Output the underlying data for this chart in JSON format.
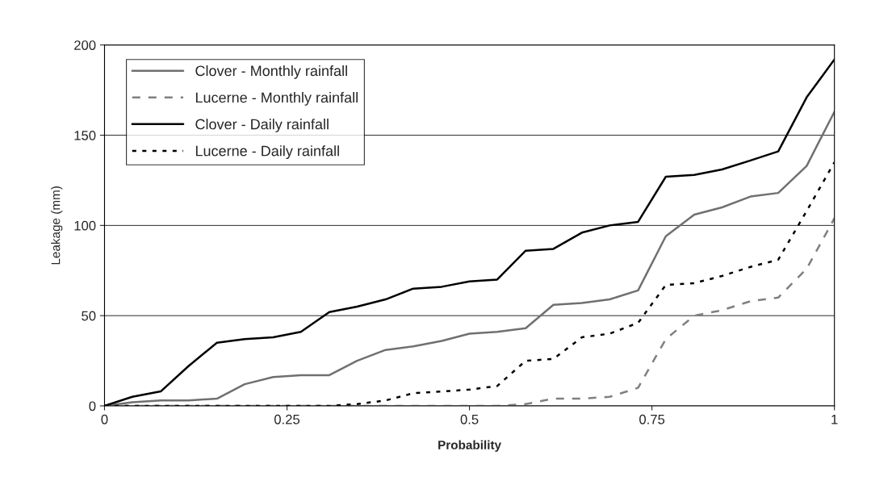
{
  "chart_data": {
    "type": "line",
    "xlabel": "Probability",
    "ylabel": "Leakage (mm)",
    "x": [
      0,
      0.038,
      0.077,
      0.115,
      0.154,
      0.192,
      0.231,
      0.269,
      0.308,
      0.346,
      0.385,
      0.423,
      0.462,
      0.5,
      0.538,
      0.577,
      0.615,
      0.654,
      0.692,
      0.731,
      0.769,
      0.808,
      0.846,
      0.885,
      0.923,
      0.962,
      1
    ],
    "series": [
      {
        "name": "Clover - Monthly rainfall",
        "color": "#707070",
        "line_style": "solid",
        "values": [
          0,
          2,
          3,
          3,
          4,
          12,
          16,
          17,
          17,
          25,
          31,
          33,
          36,
          40,
          41,
          43,
          56,
          57,
          59,
          64,
          94,
          106,
          110,
          116,
          118,
          133,
          163
        ]
      },
      {
        "name": "Lucerne - Monthly rainfall",
        "color": "#808080",
        "line_style": "dashed",
        "values": [
          0,
          0,
          0,
          0,
          0,
          0,
          0,
          0,
          0,
          0,
          0,
          0,
          0,
          0,
          0,
          1,
          4,
          4,
          5,
          10,
          37,
          50,
          53,
          58,
          60,
          76,
          104
        ]
      },
      {
        "name": "Clover - Daily rainfall",
        "color": "#000000",
        "line_style": "solid",
        "values": [
          0,
          5,
          8,
          22,
          35,
          37,
          38,
          41,
          52,
          55,
          59,
          65,
          66,
          69,
          70,
          86,
          87,
          96,
          100,
          102,
          127,
          128,
          131,
          136,
          141,
          171,
          192
        ]
      },
      {
        "name": "Lucerne - Daily rainfall",
        "color": "#000000",
        "line_style": "dotted",
        "values": [
          0,
          0,
          0,
          0,
          0,
          0,
          0,
          0,
          0,
          1,
          3,
          7,
          8,
          9,
          11,
          25,
          26,
          38,
          40,
          46,
          67,
          68,
          72,
          77,
          81,
          108,
          135
        ]
      }
    ],
    "xlim": [
      0,
      1
    ],
    "xticks": [
      0,
      0.25,
      0.5,
      0.75,
      1
    ],
    "ylim": [
      0,
      200
    ],
    "yticks": [
      0,
      50,
      100,
      150,
      200
    ],
    "grid": "y",
    "legend": "top left",
    "marker": "none"
  }
}
